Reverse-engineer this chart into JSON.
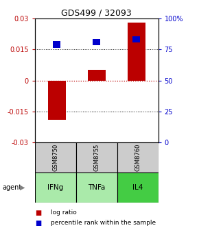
{
  "title": "GDS499 / 32093",
  "samples": [
    "GSM8750",
    "GSM8755",
    "GSM8760"
  ],
  "agents": [
    "IFNg",
    "TNFa",
    "IL4"
  ],
  "log_ratios": [
    -0.019,
    0.005,
    0.028
  ],
  "percentile_ranks": [
    79,
    81,
    83
  ],
  "ylim_left": [
    -0.03,
    0.03
  ],
  "ylim_right": [
    0,
    100
  ],
  "yticks_left": [
    -0.03,
    -0.015,
    0,
    0.015,
    0.03
  ],
  "yticks_right": [
    0,
    25,
    50,
    75,
    100
  ],
  "ytick_labels_right": [
    "0",
    "25",
    "50",
    "75",
    "100%"
  ],
  "ytick_labels_left": [
    "-0.03",
    "-0.015",
    "0",
    "0.015",
    "0.03"
  ],
  "bar_color": "#bb0000",
  "percentile_color": "#0000cc",
  "agent_colors": [
    "#aaeaaa",
    "#aaeaaa",
    "#44cc44"
  ],
  "sample_bg": "#cccccc",
  "title_fontsize": 9
}
